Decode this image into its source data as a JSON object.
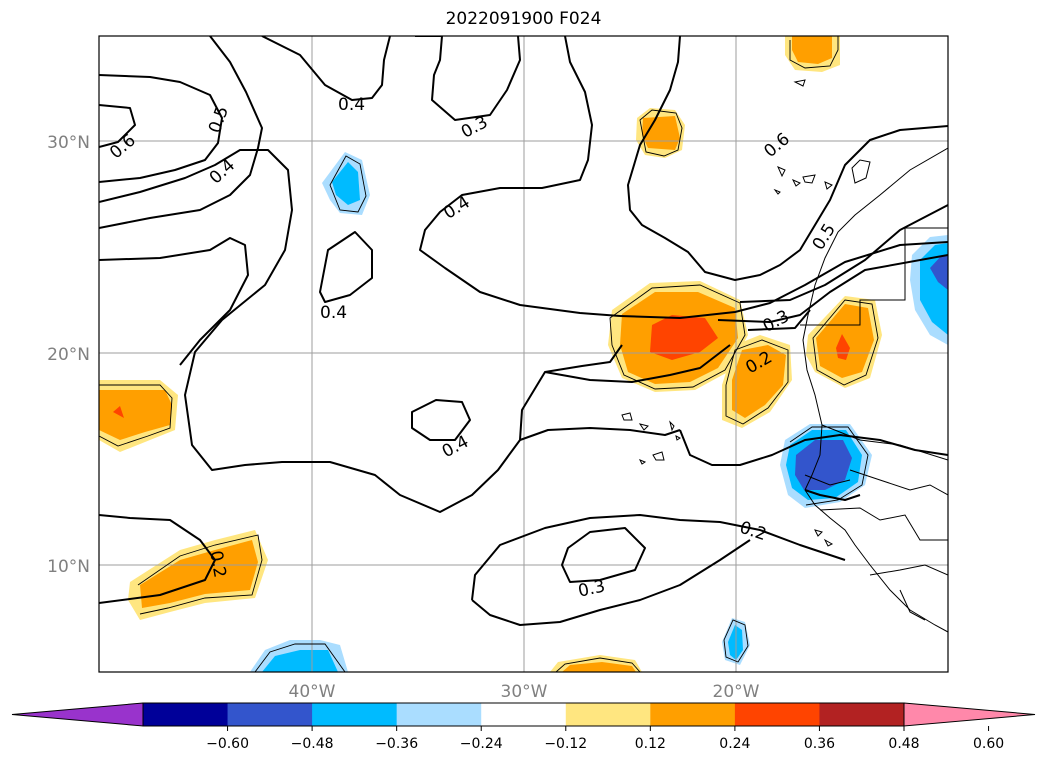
{
  "title": "2022091900 F024",
  "lat_labels": [
    {
      "text": "30°N",
      "lat": 30
    },
    {
      "text": "20°N",
      "lat": 20
    },
    {
      "text": "10°N",
      "lat": 10
    }
  ],
  "lon_labels": [
    {
      "text": "40°W",
      "lon": -40
    },
    {
      "text": "30°W",
      "lon": -30
    },
    {
      "text": "20°W",
      "lon": -20
    }
  ],
  "extent": {
    "lon_min": -50,
    "lon_max": -10,
    "lat_min": 5,
    "lat_max": 35
  },
  "contour_labels": [
    "0.6",
    "0.5",
    "0.4",
    "0.4",
    "0.3",
    "0.4",
    "0.4",
    "0.4",
    "0.6",
    "0.5",
    "0.3",
    "0.2",
    "0.2",
    "0.2",
    "0.3"
  ],
  "colorbar": {
    "colors": [
      "#9933cc",
      "#000099",
      "#3355cc",
      "#00bbff",
      "#aaddff",
      "#ffffff",
      "#ffe680",
      "#ff9f00",
      "#ff4400",
      "#b22222",
      "#ff88aa"
    ],
    "ticks": [
      "−0.60",
      "−0.48",
      "−0.36",
      "−0.24",
      "−0.12",
      "0.12",
      "0.24",
      "0.36",
      "0.48",
      "0.60"
    ]
  }
}
